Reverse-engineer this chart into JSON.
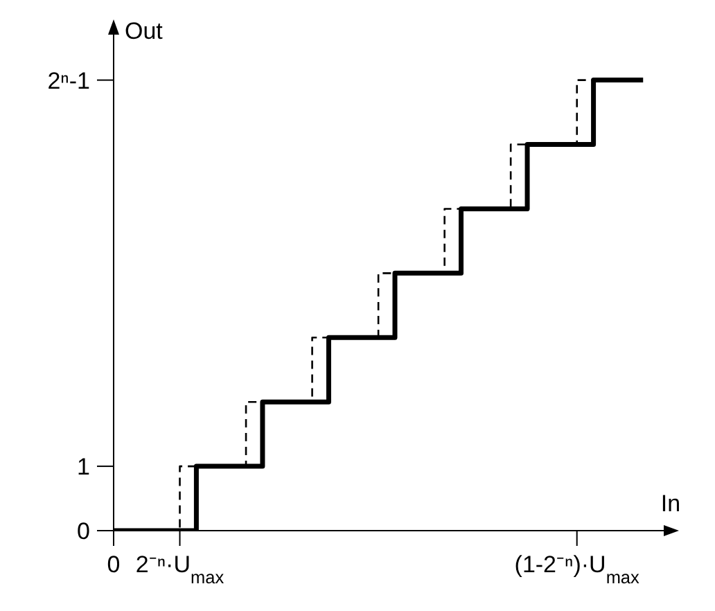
{
  "chart_data": {
    "type": "step",
    "xlabel": "In",
    "ylabel": "Out",
    "ylim": [
      0,
      7.9
    ],
    "categories": [
      "0",
      null,
      null,
      null,
      "2⁻ⁿ·U$_{max}$",
      null,
      null,
      null,
      null,
      null,
      null,
      null,
      null,
      null,
      null,
      null,
      null,
      null,
      null,
      null,
      null,
      null,
      null,
      null,
      null,
      null,
      null,
      null,
      "(1-2⁻ⁿ)·U$_{max}$",
      null,
      null,
      null,
      null,
      null,
      null
    ],
    "yticks": [
      0,
      1,
      {
        "value": 7,
        "label": "2ⁿ-1"
      }
    ],
    "marker": "none",
    "series": [
      {
        "color": "#000000",
        "line_style": "dashed",
        "values": [
          0,
          0,
          0,
          0,
          1,
          1,
          1,
          1,
          2,
          2,
          2,
          2,
          3,
          3,
          3,
          3,
          4,
          4,
          4,
          4,
          5,
          5,
          5,
          5,
          6,
          6,
          6,
          6,
          7,
          7,
          null,
          null,
          null,
          null,
          null
        ]
      },
      {
        "color": "#000000",
        "line_style": "solid",
        "values": [
          0,
          0,
          0,
          0,
          0,
          1,
          1,
          1,
          1,
          2,
          2,
          2,
          2,
          3,
          3,
          3,
          3,
          4,
          4,
          4,
          4,
          5,
          5,
          5,
          5,
          6,
          6,
          6,
          6,
          7,
          7,
          7,
          7,
          null,
          null
        ]
      }
    ]
  }
}
